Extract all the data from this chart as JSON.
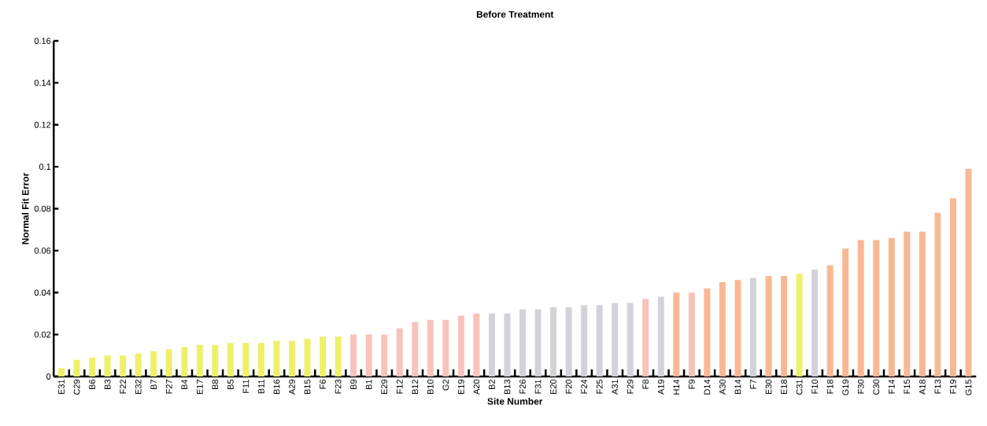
{
  "chart_data": {
    "type": "bar",
    "title": "Before Treatment",
    "xlabel": "Site Number",
    "ylabel": "Normal Fit Error",
    "categories": [
      "E31",
      "C29",
      "B6",
      "B3",
      "F22",
      "E32",
      "B7",
      "F27",
      "B4",
      "E17",
      "B8",
      "B5",
      "F11",
      "B11",
      "B16",
      "A29",
      "B15",
      "F6",
      "F23",
      "B9",
      "B1",
      "E29",
      "F12",
      "B12",
      "B10",
      "G2",
      "E19",
      "A20",
      "B2",
      "B13",
      "F26",
      "F31",
      "E20",
      "F20",
      "F24",
      "F25",
      "A31",
      "F29",
      "F8",
      "A19",
      "H14",
      "F9",
      "D14",
      "A30",
      "B14",
      "F7",
      "E30",
      "E18",
      "C31",
      "F10",
      "F18",
      "G19",
      "F30",
      "C30",
      "F14",
      "F15",
      "A18",
      "F13",
      "F19",
      "G15"
    ],
    "values": [
      0.004,
      0.008,
      0.009,
      0.01,
      0.01,
      0.011,
      0.012,
      0.013,
      0.014,
      0.015,
      0.015,
      0.016,
      0.016,
      0.016,
      0.017,
      0.017,
      0.018,
      0.019,
      0.019,
      0.02,
      0.02,
      0.02,
      0.023,
      0.026,
      0.027,
      0.027,
      0.029,
      0.03,
      0.03,
      0.03,
      0.032,
      0.032,
      0.033,
      0.033,
      0.034,
      0.034,
      0.035,
      0.035,
      0.037,
      0.038,
      0.04,
      0.04,
      0.042,
      0.045,
      0.046,
      0.047,
      0.048,
      0.048,
      0.049,
      0.051,
      0.053,
      0.061,
      0.065,
      0.065,
      0.066,
      0.069,
      0.069,
      0.078,
      0.085,
      0.099
    ],
    "colors": [
      "#eef06a",
      "#eef06a",
      "#eef06a",
      "#eef06a",
      "#eef06a",
      "#eef06a",
      "#eef06a",
      "#eef06a",
      "#eef06a",
      "#eef06a",
      "#eef06a",
      "#eef06a",
      "#eef06a",
      "#eef06a",
      "#eef06a",
      "#eef06a",
      "#eef06a",
      "#eef06a",
      "#eef06a",
      "#f9c2bb",
      "#f9c2bb",
      "#f9c2bb",
      "#f9c2bb",
      "#f9c2bb",
      "#f9c2bb",
      "#f9c2bb",
      "#f9c2bb",
      "#f9c2bb",
      "#d2d3d8",
      "#d2d3d8",
      "#d2d3d8",
      "#d2d3d8",
      "#d2d3d8",
      "#d2d3d8",
      "#d2d3d8",
      "#d2d3d8",
      "#d2d3d8",
      "#d2d3d8",
      "#f9c2bb",
      "#d2d3d8",
      "#f9b894",
      "#f9c2bb",
      "#f9b894",
      "#f9b894",
      "#f9b894",
      "#d2d3d8",
      "#f9b894",
      "#f9b894",
      "#eef06a",
      "#d2d3d8",
      "#f9b894",
      "#f9b894",
      "#f9b894",
      "#f9b894",
      "#f9b894",
      "#f9b894",
      "#f9b894",
      "#f9b894",
      "#f9b894",
      "#f9b894"
    ],
    "ylim": [
      0,
      0.16
    ],
    "yticks": [
      0,
      0.02,
      0.04,
      0.06,
      0.08,
      0.1,
      0.12,
      0.14,
      0.16
    ],
    "grid": false
  }
}
